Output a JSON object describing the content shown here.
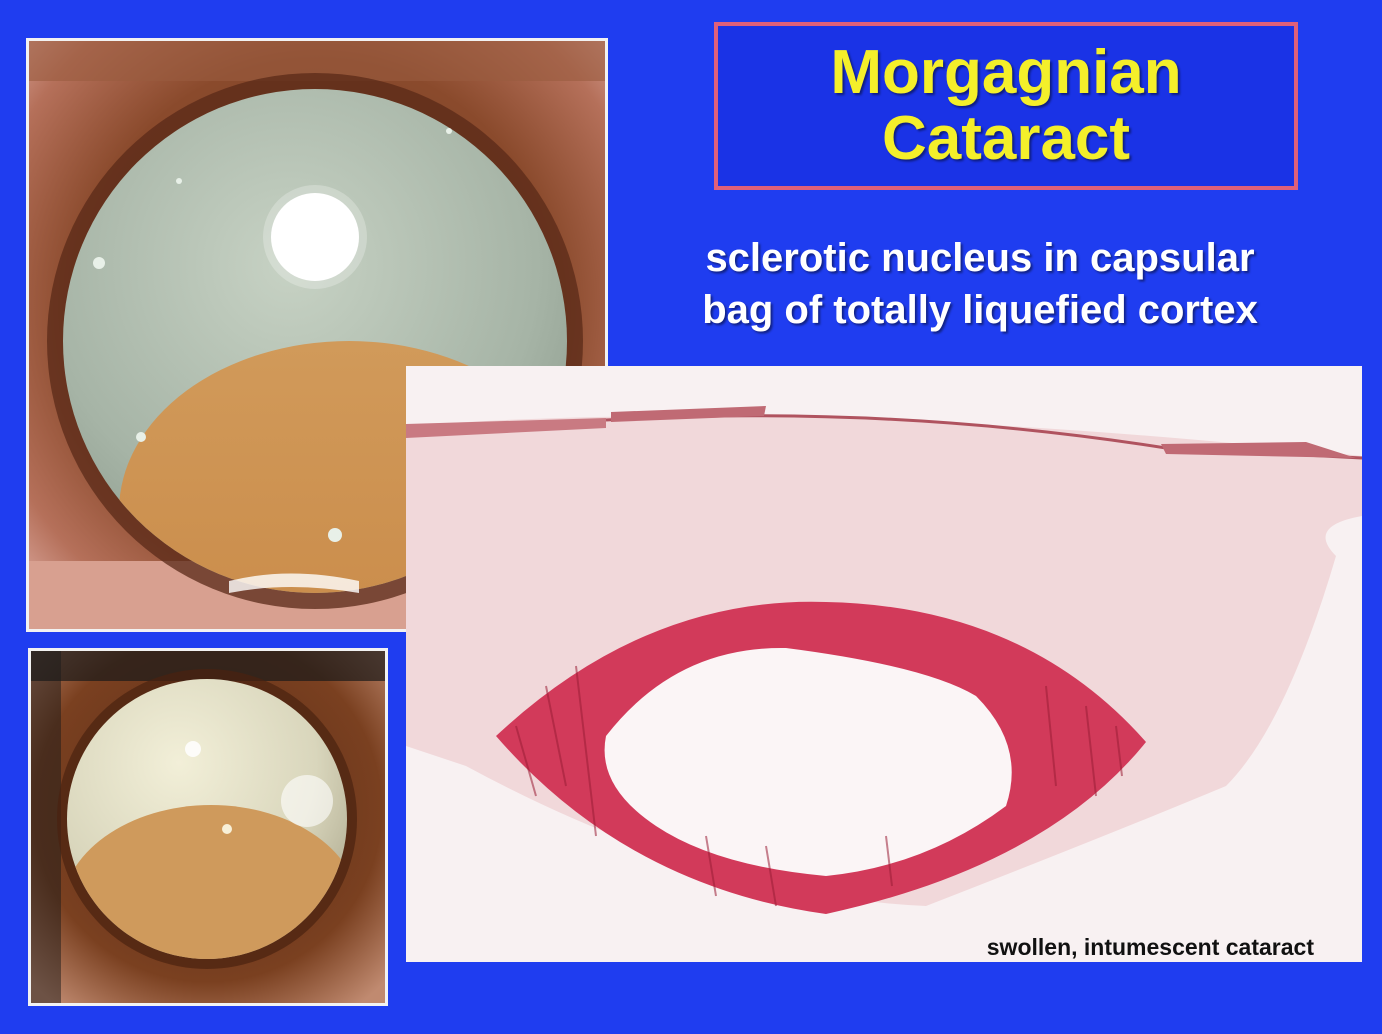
{
  "slide": {
    "title_line1": "Morgagnian",
    "title_line2": "Cataract",
    "subtitle_line1": "sclerotic nucleus in capsular",
    "subtitle_line2": "bag of totally liquefied cortex",
    "histology_caption": "swollen, intumescent cataract"
  },
  "colors": {
    "background": "#1f3df0",
    "title_text": "#f4ef2a",
    "title_border": "#e0607a",
    "subtitle_text": "#ffffff"
  }
}
